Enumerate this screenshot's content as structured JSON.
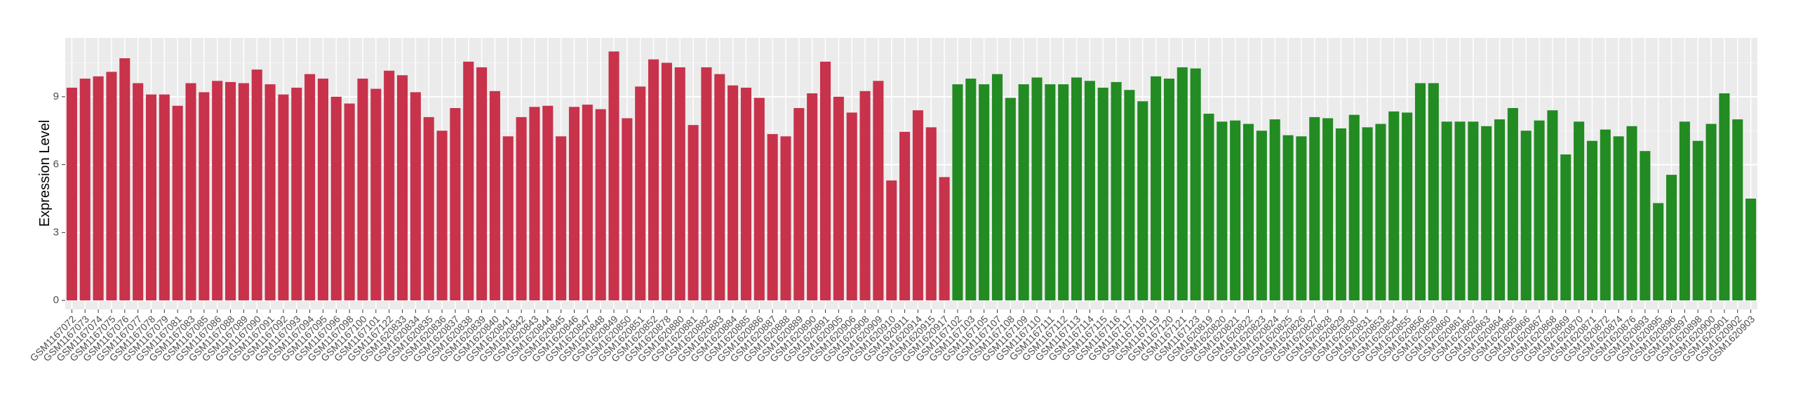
{
  "chart_data": {
    "type": "bar",
    "y_label": "Expression Level",
    "categories": [
      "GSM1167072",
      "GSM1167073",
      "GSM1167074",
      "GSM1167075",
      "GSM1167076",
      "GSM1167077",
      "GSM1167078",
      "GSM1167079",
      "GSM1167081",
      "GSM1167083",
      "GSM1167085",
      "GSM1167086",
      "GSM1167088",
      "GSM1167089",
      "GSM1167090",
      "GSM1167091",
      "GSM1167092",
      "GSM1167093",
      "GSM1167094",
      "GSM1167095",
      "GSM1167096",
      "GSM1167098",
      "GSM1167100",
      "GSM1167101",
      "GSM1167122",
      "GSM1620833",
      "GSM1620834",
      "GSM1620835",
      "GSM1620836",
      "GSM1620837",
      "GSM1620838",
      "GSM1620839",
      "GSM1620840",
      "GSM1620841",
      "GSM1620842",
      "GSM1620843",
      "GSM1620844",
      "GSM1620845",
      "GSM1620846",
      "GSM1620847",
      "GSM1620848",
      "GSM1620849",
      "GSM1620850",
      "GSM1620851",
      "GSM1620852",
      "GSM1620878",
      "GSM1620880",
      "GSM1620881",
      "GSM1620882",
      "GSM1620883",
      "GSM1620884",
      "GSM1620885",
      "GSM1620886",
      "GSM1620887",
      "GSM1620888",
      "GSM1620889",
      "GSM1620890",
      "GSM1620891",
      "GSM1620905",
      "GSM1620906",
      "GSM1620908",
      "GSM1620909",
      "GSM1620910",
      "GSM1620911",
      "GSM1620914",
      "GSM1620915",
      "GSM1620917",
      "GSM1167102",
      "GSM1167103",
      "GSM1167105",
      "GSM1167107",
      "GSM1167108",
      "GSM1167109",
      "GSM1167110",
      "GSM1167111",
      "GSM1167112",
      "GSM1167113",
      "GSM1167114",
      "GSM1167115",
      "GSM1167116",
      "GSM1167117",
      "GSM1167118",
      "GSM1167119",
      "GSM1167120",
      "GSM1167121",
      "GSM1167123",
      "GSM1620819",
      "GSM1620820",
      "GSM1620821",
      "GSM1620822",
      "GSM1620823",
      "GSM1620824",
      "GSM1620825",
      "GSM1620826",
      "GSM1620827",
      "GSM1620828",
      "GSM1620829",
      "GSM1620830",
      "GSM1620831",
      "GSM1620853",
      "GSM1620854",
      "GSM1620855",
      "GSM1620856",
      "GSM1620859",
      "GSM1620860",
      "GSM1620861",
      "GSM1620862",
      "GSM1620863",
      "GSM1620864",
      "GSM1620865",
      "GSM1620866",
      "GSM1620867",
      "GSM1620868",
      "GSM1620869",
      "GSM1620870",
      "GSM1620871",
      "GSM1620872",
      "GSM1620874",
      "GSM1620876",
      "GSM1620893",
      "GSM1620895",
      "GSM1620896",
      "GSM1620897",
      "GSM1620898",
      "GSM1620900",
      "GSM1620901",
      "GSM1620902",
      "GSM1620903"
    ],
    "values": [
      9.4,
      9.8,
      9.9,
      10.1,
      10.7,
      9.6,
      9.1,
      9.1,
      8.6,
      9.6,
      9.2,
      9.7,
      9.65,
      9.6,
      10.2,
      9.55,
      9.1,
      9.4,
      10.0,
      9.8,
      9.0,
      8.7,
      9.8,
      9.35,
      10.15,
      9.95,
      9.2,
      8.1,
      7.5,
      8.5,
      10.55,
      10.3,
      9.25,
      7.25,
      8.1,
      8.55,
      8.6,
      7.25,
      8.55,
      8.65,
      8.45,
      11.0,
      8.05,
      9.45,
      10.65,
      10.5,
      10.3,
      7.75,
      10.3,
      10.0,
      9.5,
      9.4,
      8.95,
      7.35,
      7.25,
      8.5,
      9.15,
      10.55,
      9.0,
      8.3,
      9.25,
      9.7,
      5.3,
      7.45,
      8.4,
      7.65,
      5.45,
      9.55,
      9.8,
      9.55,
      10.0,
      8.95,
      9.55,
      9.85,
      9.55,
      9.55,
      9.85,
      9.7,
      9.4,
      9.65,
      9.3,
      8.8,
      9.9,
      9.8,
      10.3,
      10.25,
      8.25,
      7.9,
      7.95,
      7.8,
      7.5,
      8.0,
      7.3,
      7.25,
      8.1,
      8.05,
      7.6,
      8.2,
      7.65,
      7.8,
      8.35,
      8.3,
      9.6,
      9.6,
      7.9,
      7.9,
      7.9,
      7.7,
      8.0,
      8.5,
      7.5,
      7.95,
      8.4,
      6.45,
      7.9,
      7.05,
      7.55,
      7.25,
      7.7,
      6.6,
      4.3,
      5.55,
      7.9,
      7.05,
      7.8,
      9.15,
      8.0,
      4.5
    ],
    "colors": [
      "#c8324b",
      "#c8324b",
      "#c8324b",
      "#c8324b",
      "#c8324b",
      "#c8324b",
      "#c8324b",
      "#c8324b",
      "#c8324b",
      "#c8324b",
      "#c8324b",
      "#c8324b",
      "#c8324b",
      "#c8324b",
      "#c8324b",
      "#c8324b",
      "#c8324b",
      "#c8324b",
      "#c8324b",
      "#c8324b",
      "#c8324b",
      "#c8324b",
      "#c8324b",
      "#c8324b",
      "#c8324b",
      "#c8324b",
      "#c8324b",
      "#c8324b",
      "#c8324b",
      "#c8324b",
      "#c8324b",
      "#c8324b",
      "#c8324b",
      "#c8324b",
      "#c8324b",
      "#c8324b",
      "#c8324b",
      "#c8324b",
      "#c8324b",
      "#c8324b",
      "#c8324b",
      "#c8324b",
      "#c8324b",
      "#c8324b",
      "#c8324b",
      "#c8324b",
      "#c8324b",
      "#c8324b",
      "#c8324b",
      "#c8324b",
      "#c8324b",
      "#c8324b",
      "#c8324b",
      "#c8324b",
      "#c8324b",
      "#c8324b",
      "#c8324b",
      "#c8324b",
      "#c8324b",
      "#c8324b",
      "#c8324b",
      "#c8324b",
      "#c8324b",
      "#c8324b",
      "#c8324b",
      "#c8324b",
      "#c8324b",
      "#228b22",
      "#228b22",
      "#228b22",
      "#228b22",
      "#228b22",
      "#228b22",
      "#228b22",
      "#228b22",
      "#228b22",
      "#228b22",
      "#228b22",
      "#228b22",
      "#228b22",
      "#228b22",
      "#228b22",
      "#228b22",
      "#228b22",
      "#228b22",
      "#228b22",
      "#228b22",
      "#228b22",
      "#228b22",
      "#228b22",
      "#228b22",
      "#228b22",
      "#228b22",
      "#228b22",
      "#228b22",
      "#228b22",
      "#228b22",
      "#228b22",
      "#228b22",
      "#228b22",
      "#228b22",
      "#228b22",
      "#228b22",
      "#228b22",
      "#228b22",
      "#228b22",
      "#228b22",
      "#228b22",
      "#228b22",
      "#228b22",
      "#228b22",
      "#228b22",
      "#228b22",
      "#228b22",
      "#228b22",
      "#228b22",
      "#228b22",
      "#228b22",
      "#228b22",
      "#228b22",
      "#228b22",
      "#228b22",
      "#228b22",
      "#228b22",
      "#228b22",
      "#228b22",
      "#228b22",
      "#228b22",
      "#228b22"
    ],
    "ylim": [
      -0.4,
      11.6
    ],
    "yticks": [
      0,
      3,
      6,
      9
    ],
    "grid": true
  }
}
